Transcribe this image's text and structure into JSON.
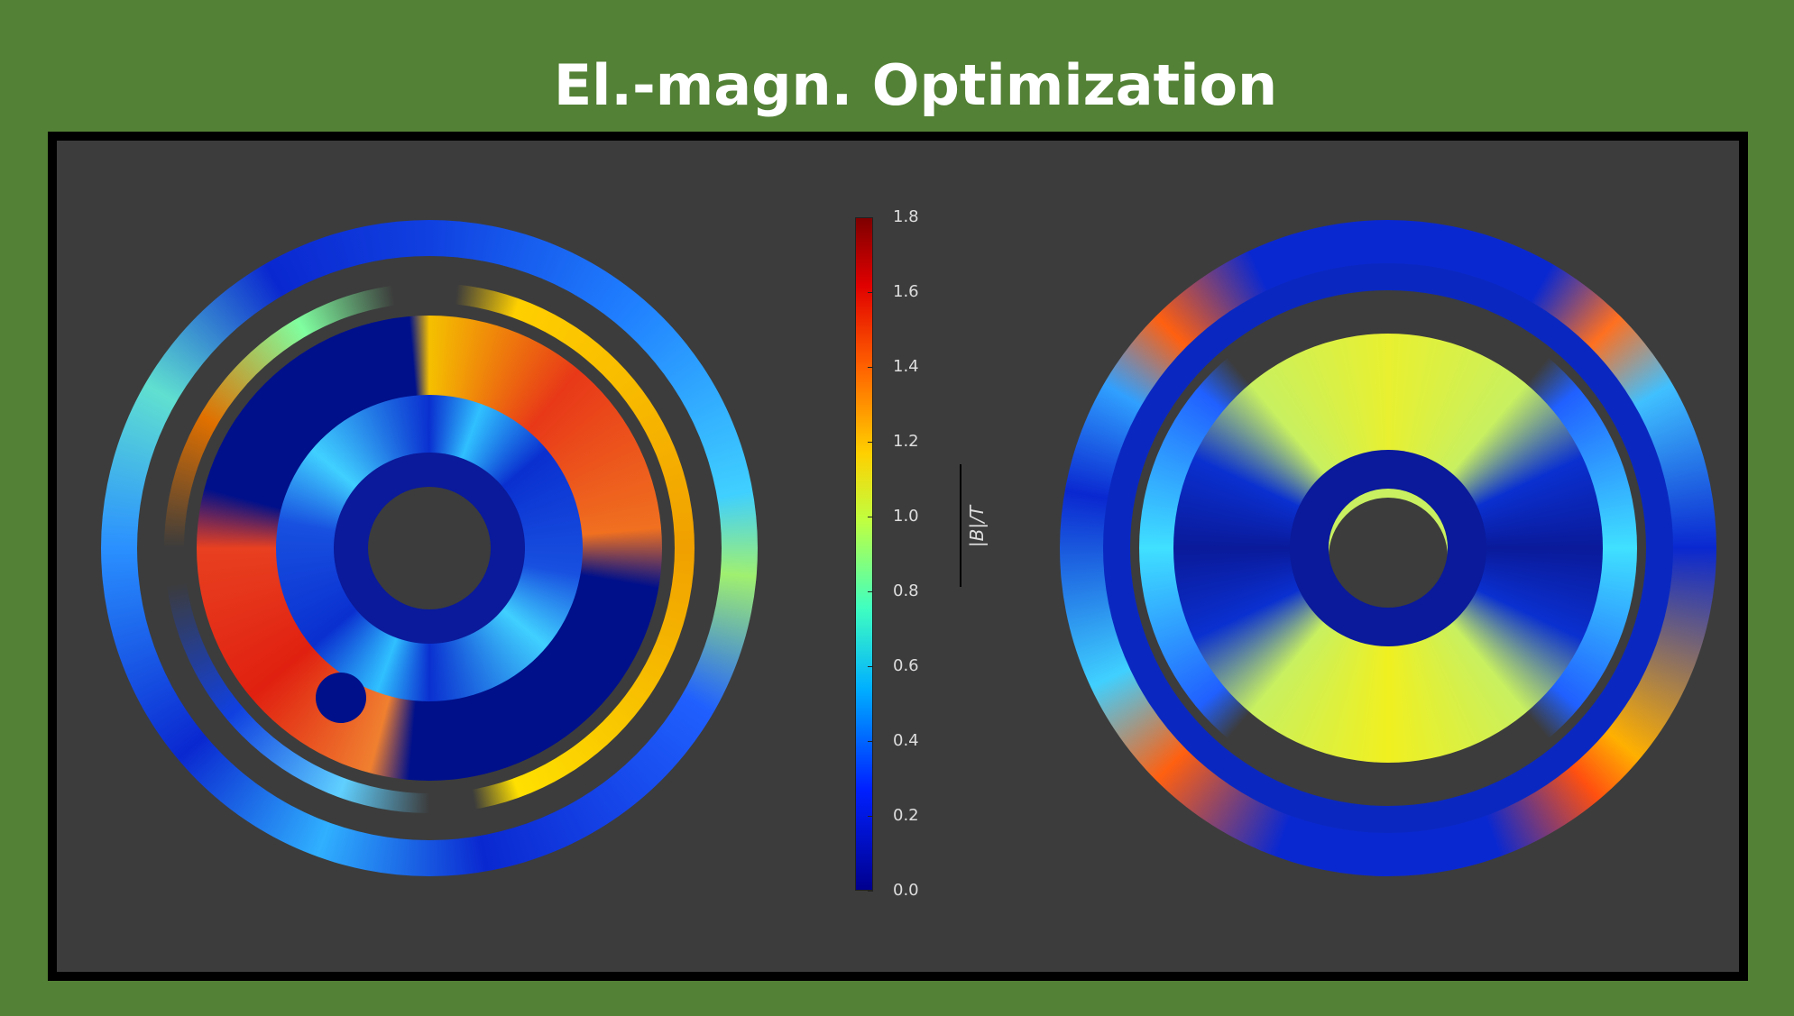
{
  "header": {
    "title": "El.-magn. Optimization"
  },
  "colorbar": {
    "ticks": [
      "0.0",
      "0.2",
      "0.4",
      "0.6",
      "0.8",
      "1.0",
      "1.2",
      "1.4",
      "1.6",
      "1.8"
    ],
    "label": "|B|/T"
  }
}
